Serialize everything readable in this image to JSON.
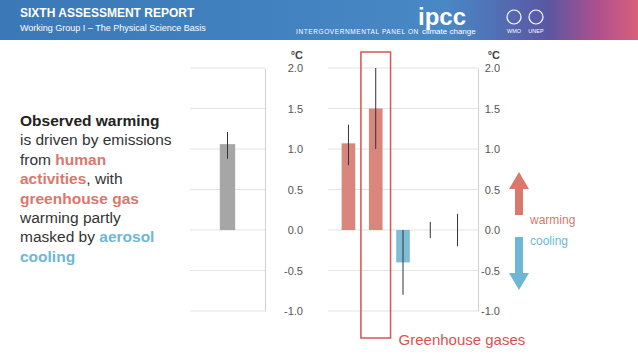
{
  "slide": {
    "header": {
      "title": "SIXTH ASSESSMENT REPORT",
      "subtitle": "Working Group I – The Physical Science Basis",
      "logo": "ipcc",
      "org_prefix": "INTERGOVERNMENTAL PANEL ON",
      "org_name": "climate change",
      "partners": [
        "WMO",
        "UNEP"
      ]
    },
    "text": [
      [
        {
          "text": "Observed warming",
          "color": "#222222"
        }
      ],
      [
        {
          "text": "is driven by emissions"
        }
      ],
      [
        {
          "text": "from "
        },
        {
          "text": "human",
          "color": "#d9786b"
        }
      ],
      [
        {
          "text": "activities",
          "color": "#d9786b"
        },
        {
          "text": ", with"
        }
      ],
      [
        {
          "text": "greenhouse gas",
          "color": "#d9786b"
        }
      ],
      [
        {
          "text": "warming partly"
        }
      ],
      [
        {
          "text": "masked by "
        },
        {
          "text": "aerosol",
          "color": "#6fb6d6"
        }
      ],
      [
        {
          "text": "cooling",
          "color": "#6fb6d6"
        }
      ]
    ],
    "arrows": {
      "up": {
        "label": "warming",
        "color": "#d9786b"
      },
      "down": {
        "label": "cooling",
        "color": "#6fb6d6"
      }
    }
  },
  "chart_data": [
    {
      "type": "bar",
      "y_label": "°C",
      "categories": [
        null
      ],
      "values": [
        1.06
      ],
      "error_low": [
        0.88
      ],
      "error_high": [
        1.21
      ],
      "color": "#a6a6a6",
      "ylim": [
        -1,
        2
      ],
      "yticks": [
        {
          "value": -1,
          "label": "-1.0"
        },
        {
          "value": -0.5,
          "label": "-0.5"
        },
        {
          "value": 0,
          "label": "0.0"
        },
        {
          "value": 0.5,
          "label": "0.5"
        },
        {
          "value": 1,
          "label": "1.0"
        },
        {
          "value": 1.5,
          "label": "1.5"
        },
        {
          "value": 2,
          "label": "2.0"
        }
      ],
      "grid": true,
      "tick_labels": "y"
    },
    {
      "type": "bar",
      "y_label": "°C",
      "categories": [
        null,
        null,
        null,
        null,
        null
      ],
      "values": [
        1.07,
        1.5,
        -0.4,
        0,
        0
      ],
      "error_low": [
        0.8,
        1.0,
        -0.8,
        -0.1,
        -0.2
      ],
      "error_high": [
        1.3,
        2.0,
        0.0,
        0.1,
        0.2
      ],
      "colors": [
        "#d9867d",
        "#d9867d",
        "#7fbcd8",
        "#999999",
        "#999999"
      ],
      "ylim": [
        -1,
        2
      ],
      "yticks": [
        {
          "value": -1,
          "label": "-1.0"
        },
        {
          "value": -0.5,
          "label": "-0.5"
        },
        {
          "value": 0,
          "label": "0.0"
        },
        {
          "value": 0.5,
          "label": "0.5"
        },
        {
          "value": 1,
          "label": "1.0"
        },
        {
          "value": 1.5,
          "label": "1.5"
        },
        {
          "value": 2,
          "label": "2.0"
        }
      ],
      "grid": true,
      "tick_labels": "y",
      "annotation": "Greenhouse gases"
    }
  ]
}
